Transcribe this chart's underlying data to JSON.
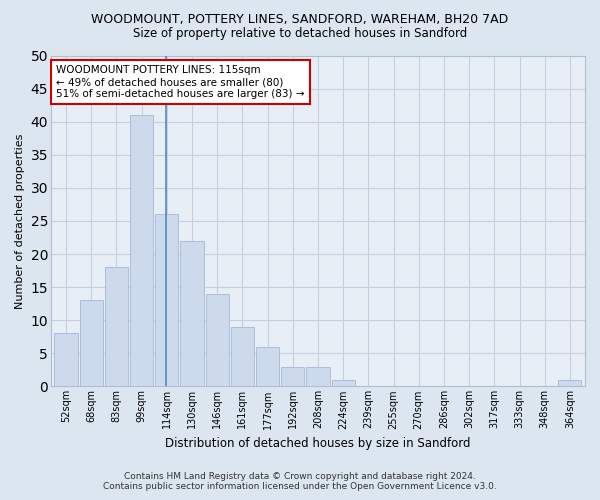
{
  "title": "WOODMOUNT, POTTERY LINES, SANDFORD, WAREHAM, BH20 7AD",
  "subtitle": "Size of property relative to detached houses in Sandford",
  "xlabel": "Distribution of detached houses by size in Sandford",
  "ylabel": "Number of detached properties",
  "bin_labels": [
    "52sqm",
    "68sqm",
    "83sqm",
    "99sqm",
    "114sqm",
    "130sqm",
    "146sqm",
    "161sqm",
    "177sqm",
    "192sqm",
    "208sqm",
    "224sqm",
    "239sqm",
    "255sqm",
    "270sqm",
    "286sqm",
    "302sqm",
    "317sqm",
    "333sqm",
    "348sqm",
    "364sqm"
  ],
  "bar_values": [
    8,
    13,
    18,
    41,
    26,
    22,
    14,
    9,
    6,
    3,
    3,
    1,
    0,
    0,
    0,
    0,
    0,
    0,
    0,
    0,
    1
  ],
  "bar_color": "#ccdaeb",
  "bar_edgecolor": "#aabfd8",
  "vline_x_index": 4,
  "vline_color": "#5588bb",
  "ylim": [
    0,
    50
  ],
  "yticks": [
    0,
    5,
    10,
    15,
    20,
    25,
    30,
    35,
    40,
    45,
    50
  ],
  "annotation_text": "WOODMOUNT POTTERY LINES: 115sqm\n← 49% of detached houses are smaller (80)\n51% of semi-detached houses are larger (83) →",
  "annotation_box_edge": "#cc0000",
  "fig_facecolor": "#dce6f0",
  "ax_facecolor": "#e8eef5",
  "grid_color": "#c5cfe0",
  "footer_line1": "Contains HM Land Registry data © Crown copyright and database right 2024.",
  "footer_line2": "Contains public sector information licensed under the Open Government Licence v3.0."
}
